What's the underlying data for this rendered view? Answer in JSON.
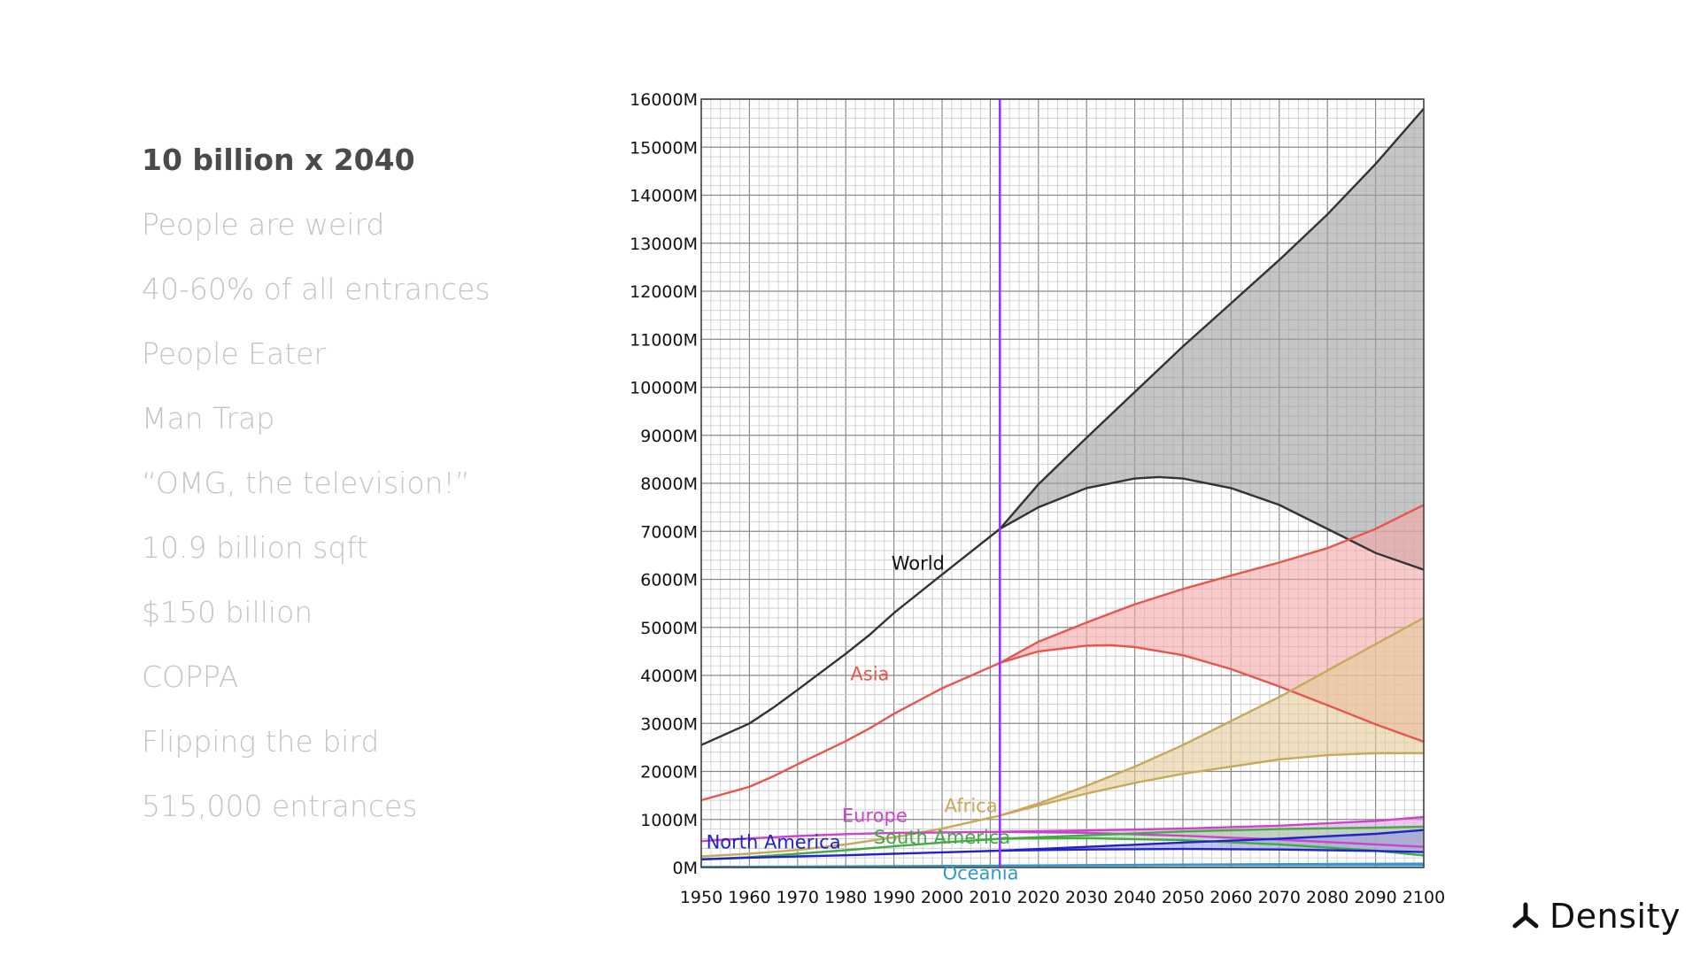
{
  "sidebar": {
    "items": [
      {
        "label": "10 billion x 2040",
        "active": true
      },
      {
        "label": "People are weird",
        "active": false
      },
      {
        "label": "40-60% of all entrances",
        "active": false
      },
      {
        "label": "People Eater",
        "active": false
      },
      {
        "label": "Man Trap",
        "active": false
      },
      {
        "label": "“OMG, the television!”",
        "active": false
      },
      {
        "label": "10.9 billion sqft",
        "active": false
      },
      {
        "label": "$150 billion",
        "active": false
      },
      {
        "label": "COPPA",
        "active": false
      },
      {
        "label": "Flipping the bird",
        "active": false
      },
      {
        "label": "515,000 entrances",
        "active": false
      }
    ]
  },
  "brand": {
    "name": "Density"
  },
  "chart_data": {
    "type": "line",
    "title": "",
    "xlabel": "",
    "ylabel": "",
    "xlim": [
      1950,
      2100
    ],
    "ylim": [
      0,
      16000
    ],
    "grid": true,
    "x_ticks": [
      1950,
      1960,
      1970,
      1980,
      1990,
      2000,
      2010,
      2020,
      2030,
      2040,
      2050,
      2060,
      2070,
      2080,
      2090,
      2100
    ],
    "y_ticks": [
      0,
      1000,
      2000,
      3000,
      4000,
      5000,
      6000,
      7000,
      8000,
      9000,
      10000,
      11000,
      12000,
      13000,
      14000,
      15000,
      16000
    ],
    "y_tick_labels": [
      "0M",
      "1000M",
      "2000M",
      "3000M",
      "4000M",
      "5000M",
      "6000M",
      "7000M",
      "8000M",
      "9000M",
      "10000M",
      "11000M",
      "12000M",
      "13000M",
      "14000M",
      "15000M",
      "16000M"
    ],
    "present_marker": {
      "x": 2012,
      "color": "#9b30ff"
    },
    "series": [
      {
        "name": "World",
        "color": "#333333",
        "fill": "#9e9e9e",
        "label_at": [
          1995,
          6200
        ],
        "history": [
          [
            1950,
            2550
          ],
          [
            1960,
            3000
          ],
          [
            1965,
            3330
          ],
          [
            1970,
            3700
          ],
          [
            1980,
            4450
          ],
          [
            1985,
            4850
          ],
          [
            1990,
            5300
          ],
          [
            2000,
            6100
          ],
          [
            2012,
            7050
          ]
        ],
        "high": [
          [
            2012,
            7050
          ],
          [
            2020,
            7980
          ],
          [
            2030,
            8950
          ],
          [
            2040,
            9900
          ],
          [
            2050,
            10850
          ],
          [
            2060,
            11750
          ],
          [
            2070,
            12650
          ],
          [
            2080,
            13600
          ],
          [
            2090,
            14650
          ],
          [
            2100,
            15800
          ]
        ],
        "low": [
          [
            2012,
            7050
          ],
          [
            2020,
            7500
          ],
          [
            2030,
            7900
          ],
          [
            2040,
            8100
          ],
          [
            2045,
            8130
          ],
          [
            2050,
            8100
          ],
          [
            2060,
            7900
          ],
          [
            2070,
            7550
          ],
          [
            2080,
            7050
          ],
          [
            2090,
            6550
          ],
          [
            2100,
            6200
          ]
        ]
      },
      {
        "name": "Asia",
        "color": "#e8554e",
        "fill": "#f4a9a6",
        "label_at": [
          1985,
          3900
        ],
        "history": [
          [
            1950,
            1400
          ],
          [
            1960,
            1680
          ],
          [
            1965,
            1900
          ],
          [
            1970,
            2150
          ],
          [
            1980,
            2630
          ],
          [
            1985,
            2900
          ],
          [
            1990,
            3200
          ],
          [
            2000,
            3730
          ],
          [
            2012,
            4260
          ]
        ],
        "high": [
          [
            2012,
            4260
          ],
          [
            2020,
            4700
          ],
          [
            2030,
            5100
          ],
          [
            2040,
            5480
          ],
          [
            2050,
            5800
          ],
          [
            2060,
            6080
          ],
          [
            2070,
            6350
          ],
          [
            2080,
            6650
          ],
          [
            2090,
            7050
          ],
          [
            2100,
            7550
          ]
        ],
        "low": [
          [
            2012,
            4260
          ],
          [
            2020,
            4500
          ],
          [
            2030,
            4620
          ],
          [
            2035,
            4630
          ],
          [
            2040,
            4590
          ],
          [
            2050,
            4420
          ],
          [
            2060,
            4130
          ],
          [
            2070,
            3770
          ],
          [
            2080,
            3380
          ],
          [
            2090,
            2980
          ],
          [
            2100,
            2620
          ]
        ]
      },
      {
        "name": "Africa",
        "color": "#c8a85a",
        "fill": "#e2cc96",
        "label_at": [
          2006,
          1150
        ],
        "history": [
          [
            1950,
            230
          ],
          [
            1960,
            285
          ],
          [
            1970,
            365
          ],
          [
            1980,
            480
          ],
          [
            1990,
            630
          ],
          [
            2000,
            810
          ],
          [
            2012,
            1080
          ]
        ],
        "high": [
          [
            2012,
            1080
          ],
          [
            2020,
            1330
          ],
          [
            2030,
            1700
          ],
          [
            2040,
            2100
          ],
          [
            2050,
            2550
          ],
          [
            2060,
            3050
          ],
          [
            2070,
            3550
          ],
          [
            2080,
            4100
          ],
          [
            2090,
            4650
          ],
          [
            2100,
            5200
          ]
        ],
        "low": [
          [
            2012,
            1080
          ],
          [
            2020,
            1290
          ],
          [
            2030,
            1540
          ],
          [
            2040,
            1760
          ],
          [
            2050,
            1950
          ],
          [
            2060,
            2100
          ],
          [
            2070,
            2250
          ],
          [
            2080,
            2340
          ],
          [
            2090,
            2380
          ],
          [
            2100,
            2380
          ]
        ]
      },
      {
        "name": "Europe",
        "color": "#cc44cc",
        "fill": "#e0a0e0",
        "label_at": [
          1986,
          950
        ],
        "history": [
          [
            1950,
            550
          ],
          [
            1960,
            605
          ],
          [
            1970,
            655
          ],
          [
            1980,
            695
          ],
          [
            1990,
            720
          ],
          [
            2000,
            728
          ],
          [
            2012,
            742
          ]
        ],
        "high": [
          [
            2012,
            742
          ],
          [
            2030,
            770
          ],
          [
            2050,
            810
          ],
          [
            2070,
            870
          ],
          [
            2090,
            970
          ],
          [
            2100,
            1050
          ]
        ],
        "low": [
          [
            2012,
            742
          ],
          [
            2030,
            720
          ],
          [
            2050,
            660
          ],
          [
            2070,
            580
          ],
          [
            2090,
            480
          ],
          [
            2100,
            430
          ]
        ]
      },
      {
        "name": "South America",
        "color": "#44aa44",
        "fill": "#a8d8a8",
        "label_at": [
          2000,
          500
        ],
        "history": [
          [
            1950,
            165
          ],
          [
            1960,
            215
          ],
          [
            1970,
            285
          ],
          [
            1980,
            360
          ],
          [
            1990,
            440
          ],
          [
            2000,
            520
          ],
          [
            2012,
            600
          ]
        ],
        "high": [
          [
            2012,
            600
          ],
          [
            2030,
            670
          ],
          [
            2050,
            750
          ],
          [
            2070,
            800
          ],
          [
            2090,
            830
          ],
          [
            2100,
            850
          ]
        ],
        "low": [
          [
            2012,
            600
          ],
          [
            2030,
            610
          ],
          [
            2050,
            570
          ],
          [
            2070,
            480
          ],
          [
            2090,
            350
          ],
          [
            2100,
            250
          ]
        ]
      },
      {
        "name": "North America",
        "color": "#2222cc",
        "fill": "#9999dd",
        "label_at": [
          1965,
          400
        ],
        "history": [
          [
            1950,
            170
          ],
          [
            1960,
            205
          ],
          [
            1970,
            230
          ],
          [
            1980,
            255
          ],
          [
            1990,
            285
          ],
          [
            2000,
            315
          ],
          [
            2012,
            350
          ]
        ],
        "high": [
          [
            2012,
            350
          ],
          [
            2030,
            430
          ],
          [
            2050,
            520
          ],
          [
            2070,
            600
          ],
          [
            2090,
            700
          ],
          [
            2100,
            780
          ]
        ],
        "low": [
          [
            2012,
            350
          ],
          [
            2030,
            375
          ],
          [
            2050,
            385
          ],
          [
            2070,
            375
          ],
          [
            2090,
            345
          ],
          [
            2100,
            320
          ]
        ]
      },
      {
        "name": "Oceania",
        "color": "#3399cc",
        "fill": "#99ccee",
        "label_at": [
          2008,
          -250
        ],
        "history": [
          [
            1950,
            13
          ],
          [
            1970,
            20
          ],
          [
            1990,
            27
          ],
          [
            2012,
            38
          ]
        ],
        "high": [
          [
            2012,
            38
          ],
          [
            2050,
            60
          ],
          [
            2100,
            80
          ]
        ],
        "low": [
          [
            2012,
            38
          ],
          [
            2050,
            50
          ],
          [
            2100,
            50
          ]
        ]
      }
    ]
  }
}
